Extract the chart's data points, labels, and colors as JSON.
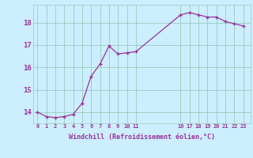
{
  "x": [
    0,
    1,
    2,
    3,
    4,
    5,
    6,
    7,
    8,
    9,
    10,
    11,
    16,
    17,
    18,
    19,
    20,
    21,
    22,
    23
  ],
  "y": [
    14.0,
    13.8,
    13.75,
    13.8,
    13.9,
    14.4,
    15.6,
    16.15,
    16.95,
    16.6,
    16.65,
    16.7,
    18.35,
    18.45,
    18.35,
    18.25,
    18.25,
    18.05,
    17.95,
    17.85
  ],
  "line_color": "#993399",
  "marker_color": "#993399",
  "bg_color": "#cceeff",
  "grid_color": "#99ccbb",
  "xlabel": "Windchill (Refroidissement éolien,°C)",
  "xticks": [
    0,
    1,
    2,
    3,
    4,
    5,
    6,
    7,
    8,
    9,
    10,
    11,
    16,
    17,
    18,
    19,
    20,
    21,
    22,
    23
  ],
  "yticks": [
    14,
    15,
    16,
    17,
    18
  ],
  "ylim": [
    13.5,
    18.8
  ],
  "xlim": [
    -0.5,
    23.8
  ]
}
